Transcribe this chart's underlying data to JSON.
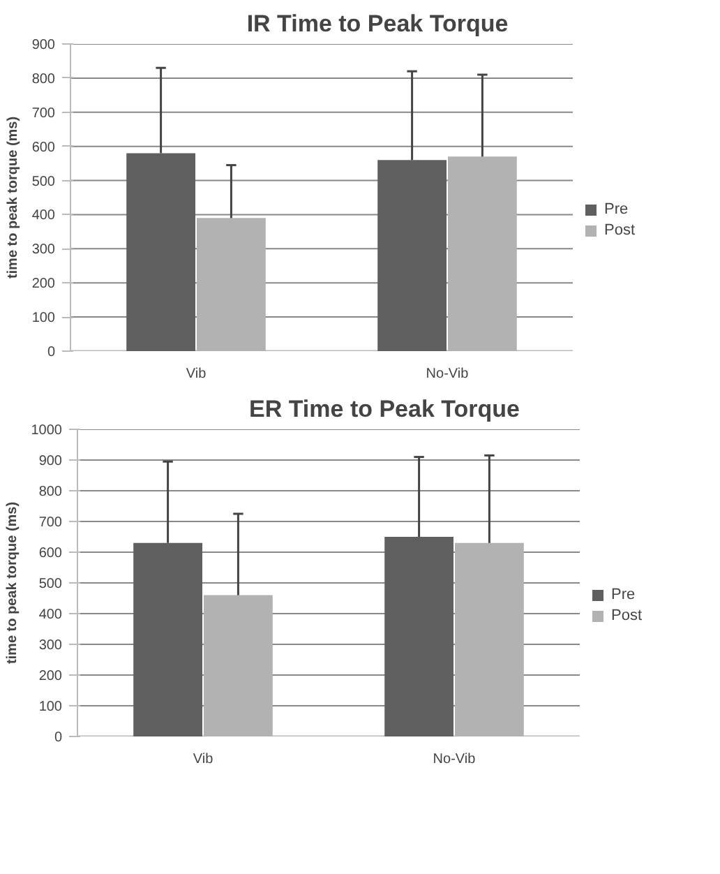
{
  "chart_data": [
    {
      "type": "bar",
      "title": "IR Time to Peak Torque",
      "ylabel": "time to peak torque (ms)",
      "categories": [
        "Vib",
        "No-Vib"
      ],
      "series": [
        {
          "name": "Pre",
          "color": "#5f5f5f",
          "values": [
            580,
            560
          ],
          "errors": [
            [
              580,
              830
            ],
            [
              560,
              820
            ]
          ]
        },
        {
          "name": "Post",
          "color": "#b2b2b2",
          "values": [
            390,
            570
          ],
          "errors": [
            [
              390,
              545
            ],
            [
              570,
              810
            ]
          ]
        }
      ],
      "ylim": [
        0,
        900
      ],
      "yticks": [
        0,
        100,
        200,
        300,
        400,
        500,
        600,
        700,
        800,
        900
      ],
      "grid": "y",
      "legend": "right"
    },
    {
      "type": "bar",
      "title": "ER Time to Peak Torque",
      "ylabel": "time to peak torque (ms)",
      "categories": [
        "Vib",
        "No-Vib"
      ],
      "series": [
        {
          "name": "Pre",
          "color": "#5f5f5f",
          "values": [
            630,
            650
          ],
          "errors": [
            [
              630,
              895
            ],
            [
              650,
              910
            ]
          ]
        },
        {
          "name": "Post",
          "color": "#b2b2b2",
          "values": [
            460,
            630
          ],
          "errors": [
            [
              460,
              725
            ],
            [
              630,
              915
            ]
          ]
        }
      ],
      "ylim": [
        0,
        1000
      ],
      "yticks": [
        0,
        100,
        200,
        300,
        400,
        500,
        600,
        700,
        800,
        900,
        1000
      ],
      "grid": "y",
      "legend": "right"
    }
  ]
}
